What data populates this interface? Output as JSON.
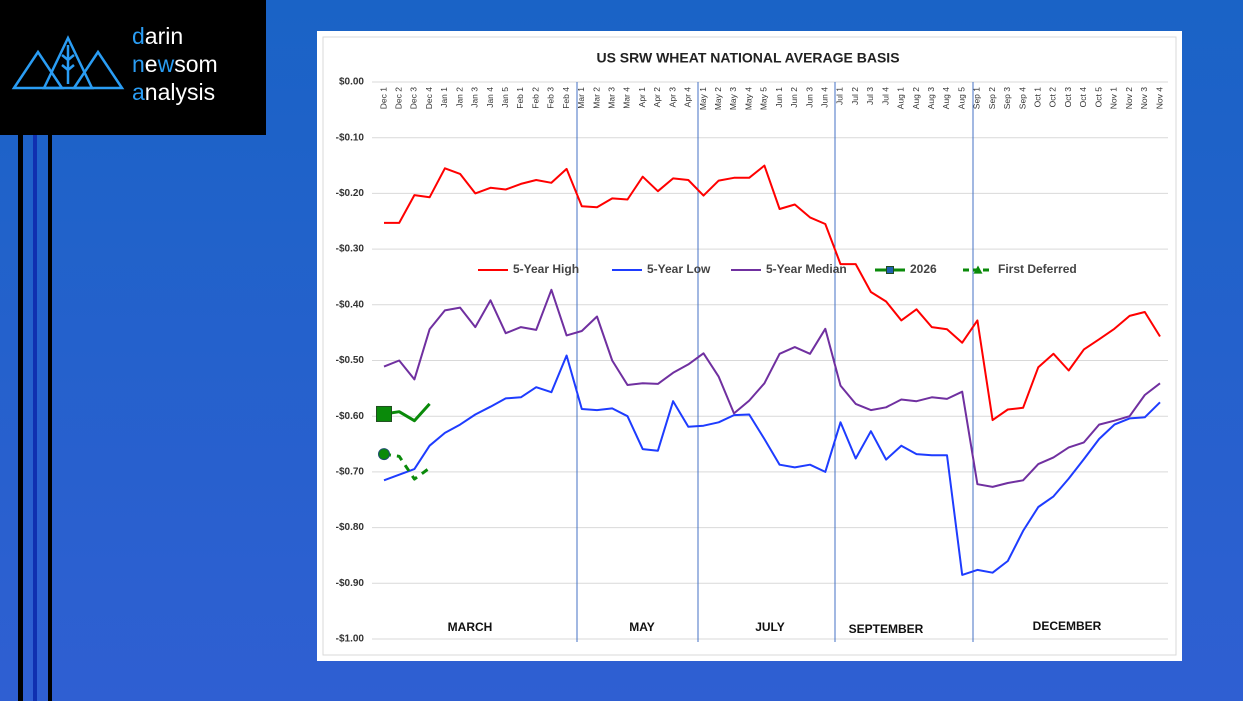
{
  "logo": {
    "line1": [
      "d",
      "arin"
    ],
    "line2": [
      "n",
      "e",
      "w",
      "som"
    ],
    "line3": [
      "a",
      "nalysis"
    ]
  },
  "chart_data": {
    "type": "line",
    "title": "US SRW WHEAT NATIONAL AVERAGE BASIS",
    "categories": [
      "Dec 1",
      "Dec 2",
      "Dec 3",
      "Dec 4",
      "Jan 1",
      "Jan 2",
      "Jan 3",
      "Jan 4",
      "Jan 5",
      "Feb 1",
      "Feb 2",
      "Feb 3",
      "Feb 4",
      "Mar 1",
      "Mar 2",
      "Mar 3",
      "Mar 4",
      "Apr 1",
      "Apr 2",
      "Apr 3",
      "Apr 4",
      "May 1",
      "May 2",
      "May 3",
      "May 4",
      "May 5",
      "Jun 1",
      "Jun 2",
      "Jun 3",
      "Jun 4",
      "Jul 1",
      "Jul 2",
      "Jul 3",
      "Jul 4",
      "Aug 1",
      "Aug 2",
      "Aug 3",
      "Aug 4",
      "Aug 5",
      "Sep 1",
      "Sep 2",
      "Sep 3",
      "Sep 4",
      "Oct 1",
      "Oct 2",
      "Oct 3",
      "Oct 4",
      "Oct 5",
      "Nov 1",
      "Nov 2",
      "Nov 3",
      "Nov 4"
    ],
    "series": [
      {
        "name": "5-Year High",
        "color": "#ff0000",
        "values": [
          -0.253,
          -0.253,
          -0.203,
          -0.207,
          -0.155,
          -0.165,
          -0.2,
          -0.19,
          -0.193,
          -0.183,
          -0.176,
          -0.181,
          -0.156,
          -0.223,
          -0.225,
          -0.209,
          -0.211,
          -0.17,
          -0.196,
          -0.173,
          -0.176,
          -0.204,
          -0.177,
          -0.172,
          -0.172,
          -0.15,
          -0.228,
          -0.22,
          -0.243,
          -0.255,
          -0.327,
          -0.327,
          -0.377,
          -0.394,
          -0.428,
          -0.408,
          -0.44,
          -0.444,
          -0.468,
          -0.428,
          -0.607,
          -0.588,
          -0.585,
          -0.512,
          -0.488,
          -0.518,
          -0.48,
          -0.462,
          -0.443,
          -0.42,
          -0.413,
          -0.457
        ]
      },
      {
        "name": "5-Year Low",
        "color": "#1e3cff",
        "values": [
          -0.715,
          -0.705,
          -0.695,
          -0.653,
          -0.63,
          -0.615,
          -0.597,
          -0.583,
          -0.568,
          -0.566,
          -0.548,
          -0.557,
          -0.491,
          -0.587,
          -0.589,
          -0.586,
          -0.6,
          -0.659,
          -0.662,
          -0.573,
          -0.619,
          -0.617,
          -0.611,
          -0.598,
          -0.597,
          -0.641,
          -0.687,
          -0.692,
          -0.687,
          -0.7,
          -0.611,
          -0.676,
          -0.627,
          -0.678,
          -0.653,
          -0.668,
          -0.67,
          -0.67,
          -0.885,
          -0.876,
          -0.881,
          -0.86,
          -0.806,
          -0.763,
          -0.744,
          -0.712,
          -0.677,
          -0.641,
          -0.615,
          -0.604,
          -0.602,
          -0.575
        ]
      },
      {
        "name": "5-Year Median",
        "color": "#7030a0",
        "values": [
          -0.511,
          -0.5,
          -0.534,
          -0.444,
          -0.41,
          -0.405,
          -0.44,
          -0.392,
          -0.451,
          -0.44,
          -0.445,
          -0.373,
          -0.455,
          -0.447,
          -0.421,
          -0.5,
          -0.544,
          -0.541,
          -0.542,
          -0.522,
          -0.507,
          -0.487,
          -0.529,
          -0.595,
          -0.572,
          -0.541,
          -0.488,
          -0.476,
          -0.488,
          -0.443,
          -0.545,
          -0.578,
          -0.589,
          -0.584,
          -0.57,
          -0.573,
          -0.566,
          -0.569,
          -0.556,
          -0.722,
          -0.727,
          -0.72,
          -0.715,
          -0.686,
          -0.674,
          -0.656,
          -0.647,
          -0.615,
          -0.608,
          -0.6,
          -0.562,
          -0.541
        ]
      },
      {
        "name": "2026",
        "color": "#0a8a0a",
        "marker": "square",
        "values": [
          -0.596,
          -0.592,
          -0.608,
          -0.578,
          null,
          null,
          null,
          null,
          null,
          null,
          null,
          null,
          null,
          null,
          null,
          null,
          null,
          null,
          null,
          null,
          null,
          null,
          null,
          null,
          null,
          null,
          null,
          null,
          null,
          null,
          null,
          null,
          null,
          null,
          null,
          null,
          null,
          null,
          null,
          null,
          null,
          null,
          null,
          null,
          null,
          null,
          null,
          null,
          null,
          null,
          null,
          null
        ]
      },
      {
        "name": "First Deferred",
        "color": "#0a8a0a",
        "dashed": true,
        "marker": "triangle",
        "values": [
          -0.668,
          -0.672,
          -0.713,
          -0.693,
          null,
          null,
          null,
          null,
          null,
          null,
          null,
          null,
          null,
          null,
          null,
          null,
          null,
          null,
          null,
          null,
          null,
          null,
          null,
          null,
          null,
          null,
          null,
          null,
          null,
          null,
          null,
          null,
          null,
          null,
          null,
          null,
          null,
          null,
          null,
          null,
          null,
          null,
          null,
          null,
          null,
          null,
          null,
          null,
          null,
          null,
          null,
          null
        ]
      }
    ],
    "annotations": [
      "MARCH",
      "MAY",
      "JULY",
      "SEPTEMBER",
      "DECEMBER"
    ],
    "ylim": [
      -1,
      0
    ],
    "yticks": [
      {
        "value": 0,
        "label": "$0.00"
      },
      {
        "value": -0.1,
        "label": "-$0.10"
      },
      {
        "value": -0.2,
        "label": "-$0.20"
      },
      {
        "value": -0.3,
        "label": "-$0.30"
      },
      {
        "value": -0.4,
        "label": "-$0.40"
      },
      {
        "value": -0.5,
        "label": "-$0.50"
      },
      {
        "value": -0.6,
        "label": "-$0.60"
      },
      {
        "value": -0.7,
        "label": "-$0.70"
      },
      {
        "value": -0.8,
        "label": "-$0.80"
      },
      {
        "value": -0.9,
        "label": "-$0.90"
      },
      {
        "value": -1,
        "label": "-$1.00"
      }
    ],
    "grid": true,
    "legend": "center"
  }
}
